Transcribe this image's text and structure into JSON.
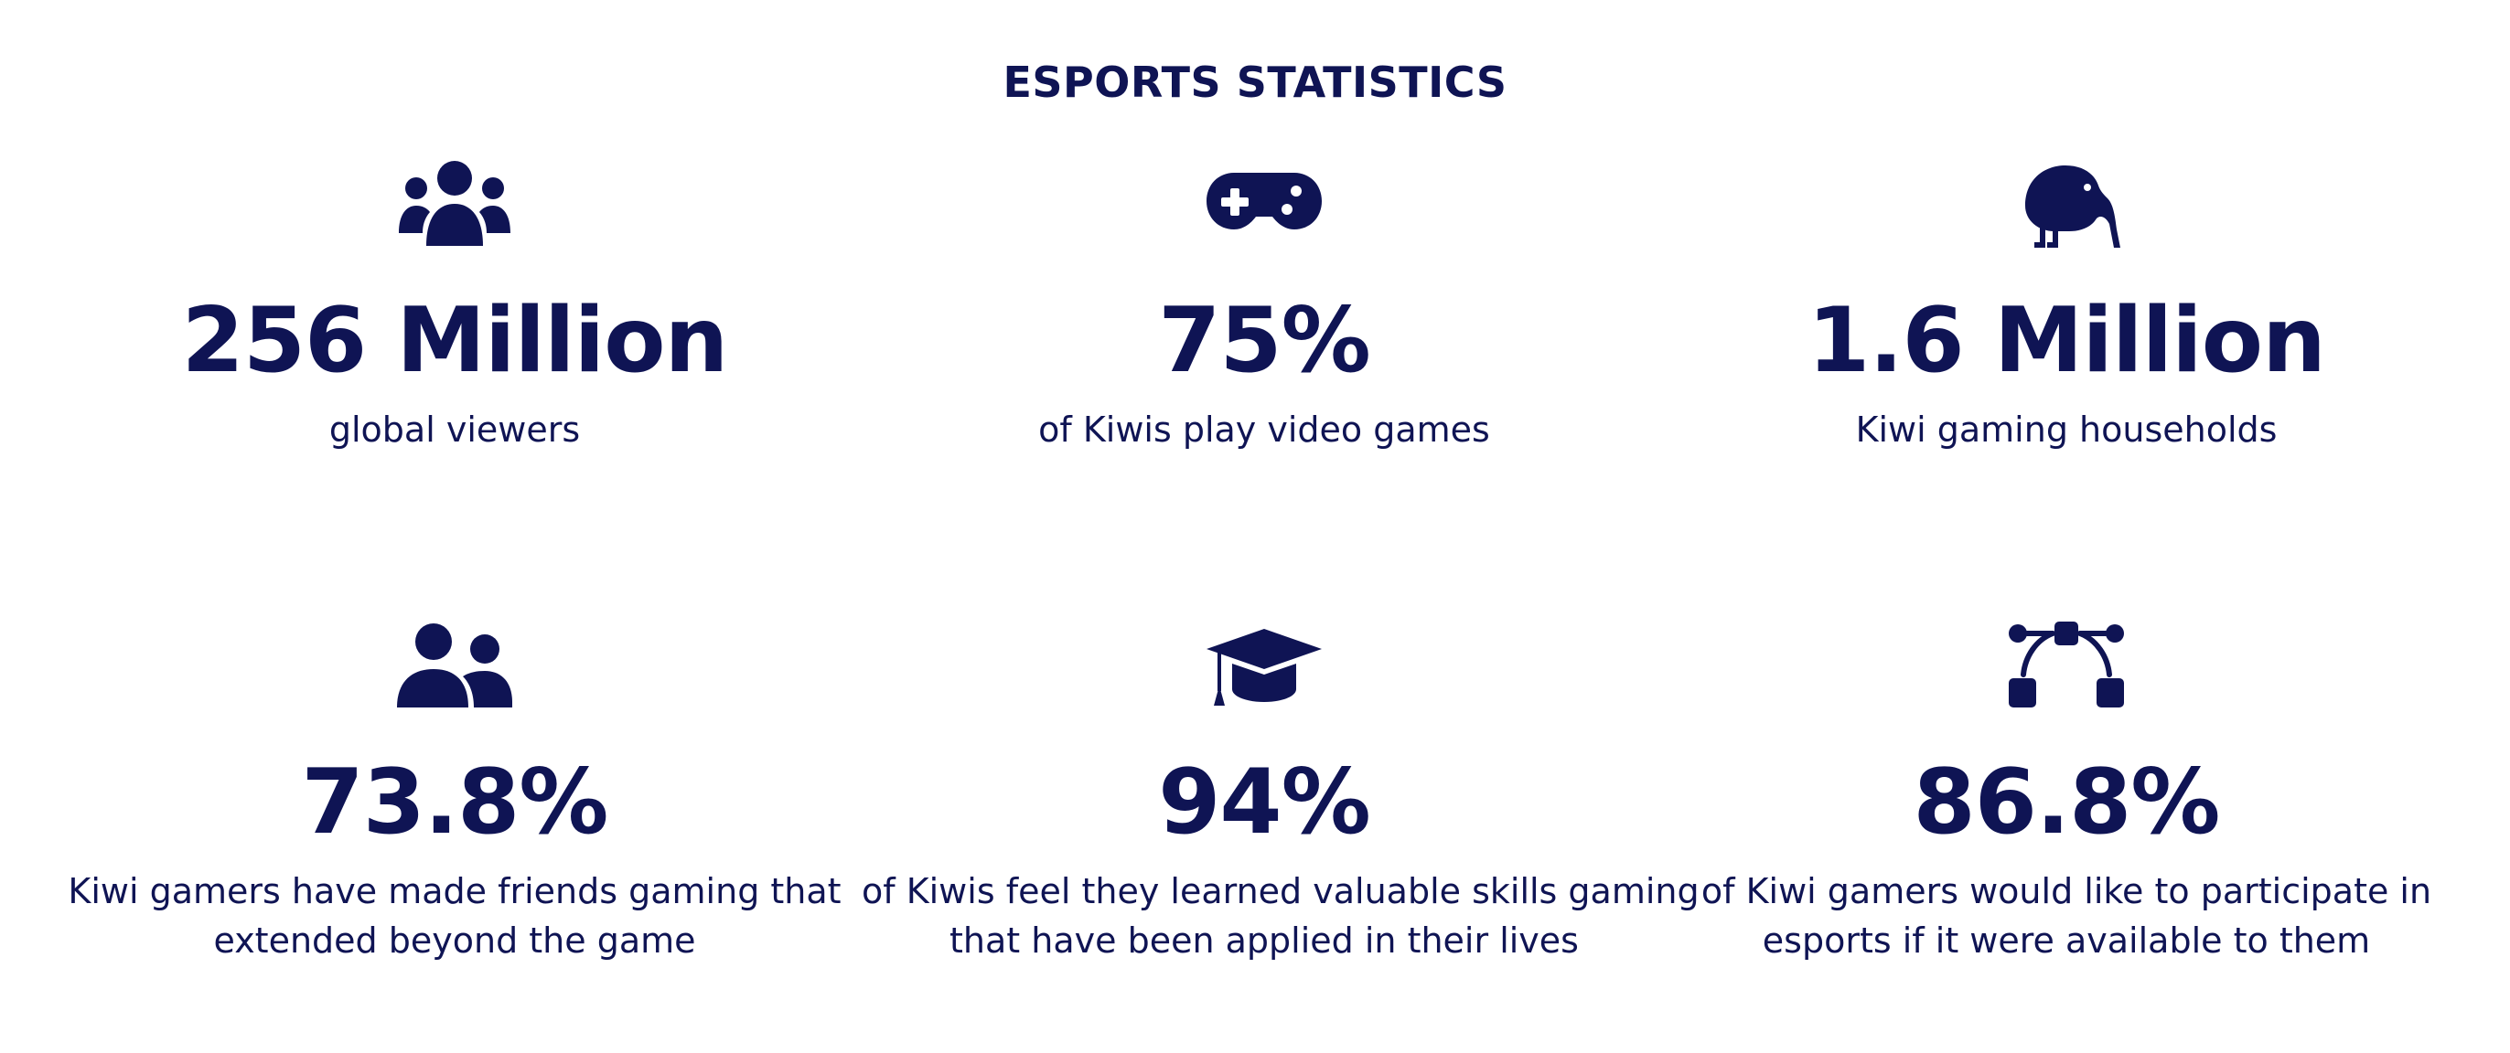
{
  "header": {
    "title": "ESPORTS STATISTICS"
  },
  "colors": {
    "primary": "#0f1454",
    "background": "#ffffff"
  },
  "stats": [
    {
      "icon": "users-group-icon",
      "value": "256 Million",
      "desc_lines": [
        "global viewers"
      ]
    },
    {
      "icon": "gamepad-icon",
      "value": "75%",
      "desc_lines": [
        "of Kiwis play video games"
      ]
    },
    {
      "icon": "kiwi-bird-icon",
      "value": "1.6 Million",
      "desc_lines": [
        "Kiwi gaming households"
      ]
    },
    {
      "icon": "user-friends-icon",
      "value": "73.8%",
      "desc_lines": [
        "Kiwi gamers have made friends gaming that",
        "extended beyond the game"
      ]
    },
    {
      "icon": "graduation-cap-icon",
      "value": "94%",
      "desc_lines": [
        "of Kiwis feel they learned valuable skills gaming",
        "that have been applied in their lives"
      ]
    },
    {
      "icon": "network-nodes-icon",
      "value": "86.8%",
      "desc_lines": [
        "of Kiwi gamers would like to participate in",
        "esports if it were available to them"
      ]
    }
  ]
}
